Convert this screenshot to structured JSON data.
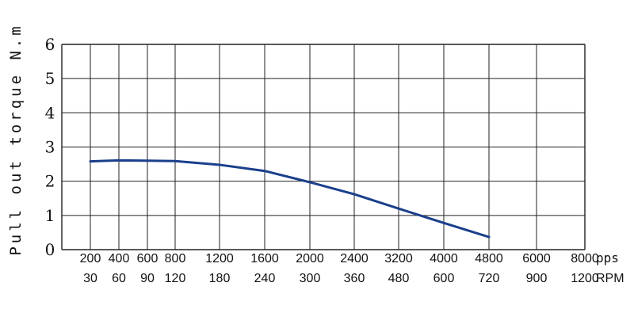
{
  "chart_data": {
    "type": "line",
    "ylabel": "Pull out torque N.m",
    "ylim": [
      0,
      6
    ],
    "y_ticks": [
      "0",
      "1",
      "2",
      "3",
      "4",
      "5",
      "6"
    ],
    "x_ticks_pps": [
      "200",
      "400",
      "600",
      "800",
      "1200",
      "1600",
      "2000",
      "2400",
      "3200",
      "4000",
      "4800",
      "6000",
      "8000"
    ],
    "x_ticks_rpm": [
      "30",
      "60",
      "90",
      "120",
      "180",
      "240",
      "300",
      "360",
      "480",
      "600",
      "720",
      "900",
      "1200"
    ],
    "x_unit_pps": "pps",
    "x_unit_rpm": "RPM",
    "grid": true,
    "series": [
      {
        "color": "#1a3f8c",
        "x": [
          "200",
          "400",
          "600",
          "800",
          "1200",
          "1600",
          "2000",
          "2400",
          "3200",
          "4000",
          "4800"
        ],
        "values": [
          2.58,
          2.61,
          2.6,
          2.59,
          2.48,
          2.3,
          1.97,
          1.62,
          1.2,
          0.78,
          0.37
        ]
      }
    ]
  }
}
